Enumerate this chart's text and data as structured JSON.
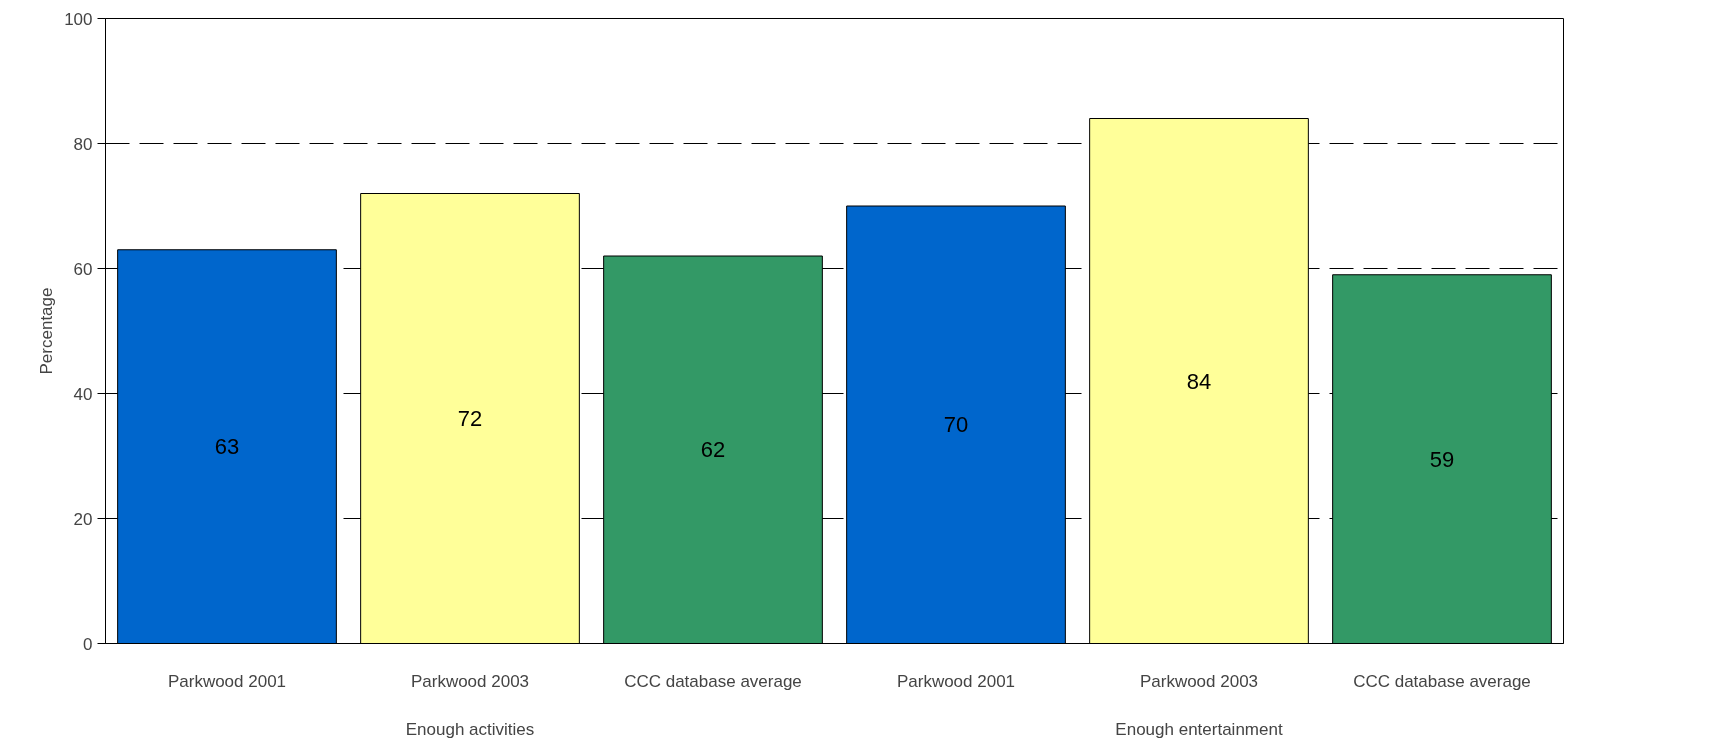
{
  "chart_data": {
    "type": "bar",
    "ylabel": "Percentage",
    "categories": [
      "Enough activities",
      "Enough entertainment"
    ],
    "series": [
      {
        "name": "Parkwood 2001",
        "color": "#0066cc",
        "values": [
          63,
          70
        ]
      },
      {
        "name": "Parkwood 2003",
        "color": "#ffff99",
        "values": [
          72,
          84
        ]
      },
      {
        "name": "CCC database average",
        "color": "#339966",
        "values": [
          62,
          59
        ]
      }
    ],
    "ylim": [
      0,
      100
    ],
    "yticks": [
      0,
      20,
      40,
      60,
      80,
      100
    ],
    "grid": "y",
    "data_labels": true
  }
}
